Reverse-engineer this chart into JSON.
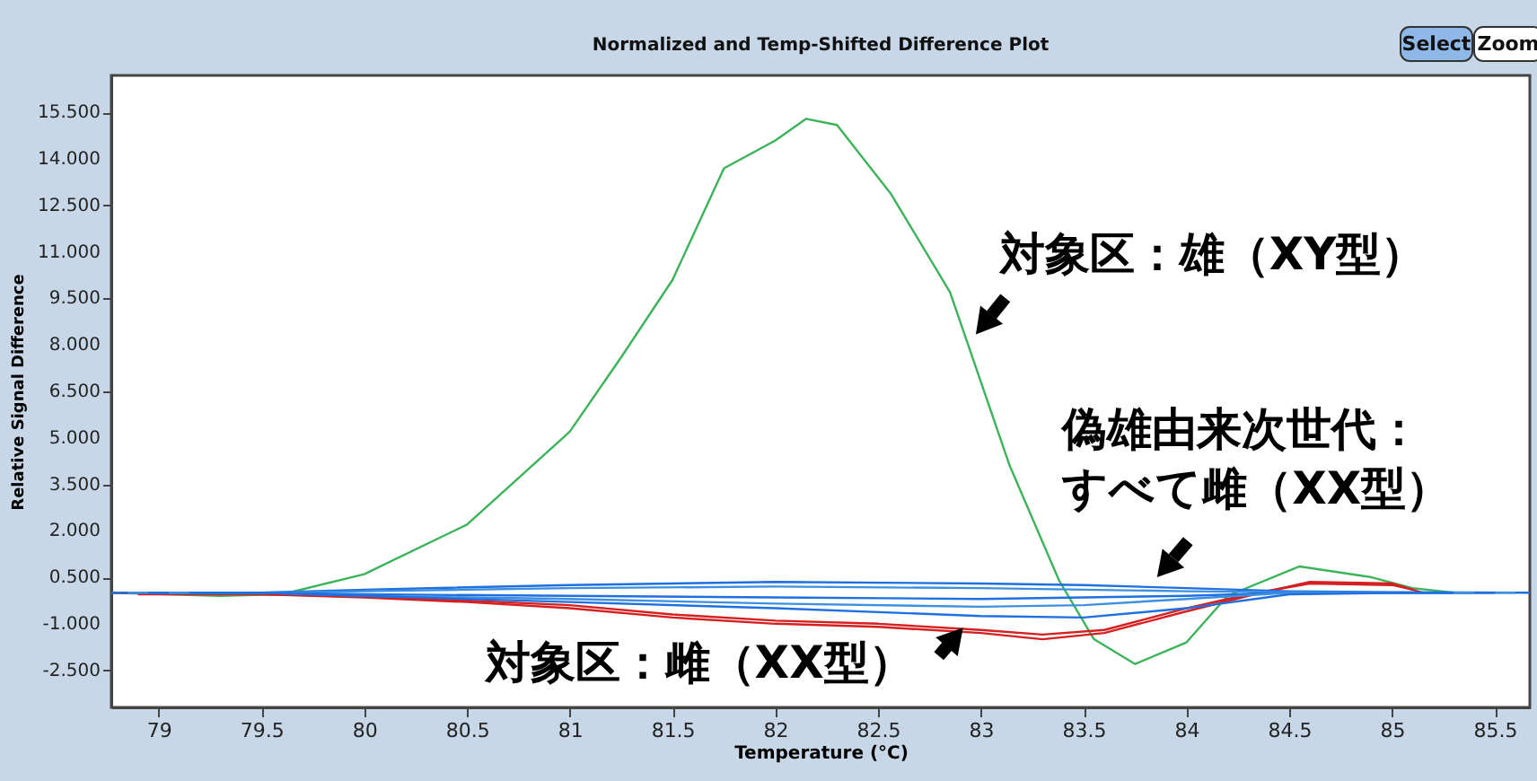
{
  "chart_data": {
    "type": "line",
    "title": "Normalized and Temp-Shifted Difference Plot",
    "xlabel": "Temperature (°C)",
    "ylabel": "Relative Signal Difference",
    "xlim": [
      78.77,
      85.67
    ],
    "xticks": [
      79,
      79.5,
      80,
      80.5,
      81,
      81.5,
      82,
      82.5,
      83,
      83.5,
      84,
      84.5,
      85,
      85.5
    ],
    "ylim": [
      -3.7,
      16.7
    ],
    "yticks": [
      {
        "value": 15.5,
        "label": "15.500"
      },
      {
        "value": 14,
        "label": "14.000"
      },
      {
        "value": 12.5,
        "label": "12.500"
      },
      {
        "value": 11,
        "label": "11.000"
      },
      {
        "value": 9.5,
        "label": "9.500"
      },
      {
        "value": 8,
        "label": "8.000"
      },
      {
        "value": 6.5,
        "label": "6.500"
      },
      {
        "value": 5,
        "label": "5.000"
      },
      {
        "value": 3.5,
        "label": "3.500"
      },
      {
        "value": 2,
        "label": "2.000"
      },
      {
        "value": 0.5,
        "label": "0.500"
      },
      {
        "value": -1,
        "label": "-1.000"
      },
      {
        "value": -2.5,
        "label": "-2.500"
      }
    ],
    "grid": false,
    "legend": false,
    "marker": "none",
    "line_style": "solid",
    "series": [
      {
        "color": "#3cb35a",
        "x": [
          78.77,
          79.3,
          79.6,
          80,
          80.5,
          81,
          81.25,
          81.5,
          81.75,
          82,
          82.15,
          82.3,
          82.56,
          82.85,
          83.14,
          83.38,
          83.55,
          83.75,
          84,
          84.2,
          84.55,
          84.9,
          85.1,
          85.3
        ],
        "values": [
          0,
          -0.1,
          -0.05,
          0.6,
          2.2,
          5.2,
          7.6,
          10.1,
          13.7,
          14.6,
          15.3,
          15.1,
          12.9,
          9.7,
          4.1,
          0.4,
          -1.5,
          -2.3,
          -1.6,
          -0.1,
          0.85,
          0.5,
          0.15,
          0
        ]
      },
      {
        "color": "#d42020",
        "x": [
          78.77,
          79.5,
          80,
          80.5,
          81,
          81.5,
          82,
          82.5,
          83,
          83.3,
          83.6,
          84,
          84.3,
          84.6,
          85,
          85.15
        ],
        "values": [
          0,
          -0.05,
          -0.15,
          -0.3,
          -0.5,
          -0.8,
          -1.0,
          -1.1,
          -1.3,
          -1.5,
          -1.3,
          -0.6,
          -0.1,
          0.35,
          0.3,
          0
        ]
      },
      {
        "color": "#d42020",
        "x": [
          78.9,
          79.5,
          80,
          80.5,
          81,
          81.5,
          82,
          82.5,
          83,
          83.3,
          83.6,
          84,
          84.3,
          84.6,
          85,
          85.1
        ],
        "values": [
          -0.05,
          -0.05,
          -0.1,
          -0.25,
          -0.4,
          -0.7,
          -0.9,
          -1.0,
          -1.2,
          -1.35,
          -1.2,
          -0.5,
          -0.05,
          0.3,
          0.25,
          0.1
        ]
      },
      {
        "color": "#1e6fe0",
        "x": [
          78.77,
          79.5,
          80,
          81,
          82,
          83,
          83.5,
          84,
          84.5,
          85,
          85.67
        ],
        "values": [
          0,
          0,
          0.1,
          0.25,
          0.35,
          0.3,
          0.25,
          0.15,
          0.05,
          0.02,
          0
        ]
      },
      {
        "color": "#3d8fe0",
        "x": [
          78.85,
          79.5,
          80,
          81,
          82,
          83,
          83.5,
          84,
          84.5,
          85,
          85.6
        ],
        "values": [
          0,
          0,
          0.05,
          0.15,
          0.2,
          0.15,
          0.1,
          0.05,
          0.02,
          0,
          0
        ]
      },
      {
        "color": "#1e6fe0",
        "x": [
          78.95,
          79.5,
          80,
          81,
          82,
          83,
          83.5,
          84,
          84.5,
          85,
          85.5
        ],
        "values": [
          0,
          0,
          -0.05,
          -0.1,
          -0.15,
          -0.2,
          -0.15,
          -0.1,
          0,
          0,
          0
        ]
      },
      {
        "color": "#3d8fe0",
        "x": [
          79.05,
          79.5,
          80,
          81,
          82,
          83,
          83.5,
          84,
          84.5,
          85,
          85.4
        ],
        "values": [
          0,
          0,
          -0.1,
          -0.2,
          -0.35,
          -0.45,
          -0.4,
          -0.2,
          0,
          0,
          0
        ]
      },
      {
        "color": "#1e6fe0",
        "x": [
          79.15,
          79.5,
          80,
          81,
          82,
          83,
          83.5,
          84,
          84.5,
          85,
          85.3
        ],
        "values": [
          0,
          0,
          -0.1,
          -0.3,
          -0.5,
          -0.75,
          -0.8,
          -0.5,
          -0.05,
          0,
          0
        ]
      }
    ],
    "annotations": [
      {
        "text": "対象区：雄（XY型）",
        "x": 82.97,
        "y": 8.3
      },
      {
        "text": "偽雄由来次世代：すべて雌（XX型）",
        "x": 83.85,
        "y": 0.45
      },
      {
        "text": "対象区：雌（XX型）",
        "x": 82.9,
        "y": -1.23
      },
      "Select",
      "Zoom"
    ]
  }
}
